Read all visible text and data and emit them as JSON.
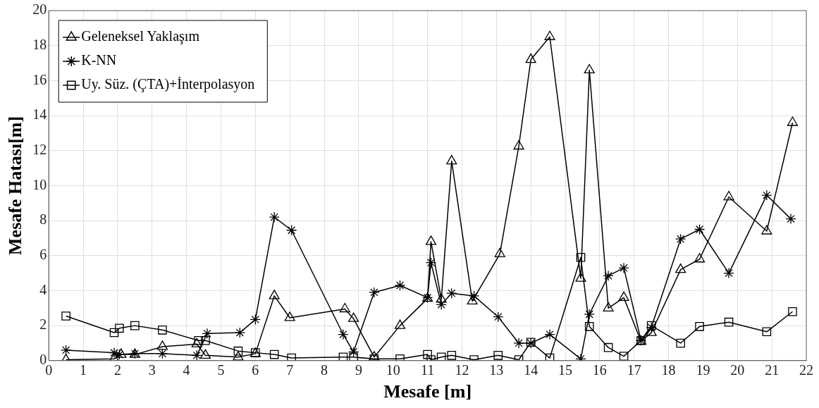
{
  "chart_data": {
    "type": "line",
    "xlabel": "Mesafe [m]",
    "ylabel": "Mesafe Hatası[m]",
    "xlim": [
      0,
      22
    ],
    "xticks": [
      0,
      1,
      2,
      3,
      4,
      5,
      6,
      7,
      8,
      9,
      10,
      11,
      12,
      13,
      14,
      15,
      16,
      17,
      18,
      19,
      20,
      21,
      22
    ],
    "ylim": [
      0,
      20
    ],
    "yticks": [
      0,
      2,
      4,
      6,
      8,
      10,
      12,
      14,
      16,
      18,
      20
    ],
    "grid": true,
    "legend": "top left",
    "line_style": "solid",
    "series": [
      {
        "name": "Geleneksel Yaklaşım",
        "color": "#000000",
        "marker": "triangle",
        "x": [
          0.5,
          1.9,
          2.1,
          2.5,
          3.3,
          4.3,
          4.55,
          5.5,
          6.0,
          6.55,
          7.0,
          8.6,
          8.85,
          9.45,
          10.2,
          11.0,
          11.1,
          11.4,
          11.7,
          12.3,
          13.1,
          13.65,
          14.0,
          14.55,
          15.45,
          15.7,
          16.25,
          16.7,
          17.2,
          17.5,
          18.35,
          18.9,
          19.75,
          20.85,
          21.6
        ],
        "values": [
          0.05,
          0.1,
          0.35,
          0.35,
          0.8,
          0.95,
          0.3,
          0.2,
          0.4,
          3.7,
          2.45,
          2.95,
          2.4,
          0.2,
          2.0,
          3.55,
          6.8,
          3.5,
          11.4,
          3.4,
          6.1,
          12.25,
          17.2,
          18.5,
          4.7,
          16.6,
          3.0,
          3.6,
          1.1,
          1.6,
          5.2,
          5.8,
          9.35,
          7.4,
          13.6
        ]
      },
      {
        "name": "K-NN",
        "color": "#000000",
        "marker": "cross",
        "x": [
          0.5,
          1.9,
          2.05,
          2.5,
          3.3,
          4.3,
          4.6,
          5.55,
          6.0,
          6.55,
          7.05,
          8.55,
          8.85,
          9.45,
          10.2,
          11.0,
          11.1,
          11.4,
          11.7,
          12.35,
          13.05,
          13.65,
          14.0,
          14.55,
          15.45,
          15.7,
          16.25,
          16.7,
          17.2,
          17.5,
          18.35,
          18.9,
          19.75,
          20.85,
          21.55
        ],
        "values": [
          0.6,
          0.45,
          0.35,
          0.4,
          0.4,
          0.3,
          1.55,
          1.6,
          2.35,
          8.2,
          7.45,
          1.5,
          0.5,
          3.9,
          4.3,
          3.6,
          5.6,
          3.2,
          3.85,
          3.7,
          2.5,
          1.0,
          1.0,
          1.5,
          0.1,
          2.65,
          4.85,
          5.3,
          1.15,
          1.9,
          6.95,
          7.5,
          5.0,
          9.45,
          8.1
        ]
      },
      {
        "name": "Uy. Süz. (ÇTA)+İnterpolasyon",
        "color": "#000000",
        "marker": "square",
        "x": [
          0.5,
          1.9,
          2.05,
          2.5,
          3.3,
          4.35,
          4.55,
          5.5,
          6.0,
          6.55,
          7.05,
          8.55,
          8.85,
          9.45,
          10.2,
          11.0,
          11.1,
          11.4,
          11.7,
          12.35,
          13.05,
          13.65,
          14.0,
          14.55,
          15.45,
          15.7,
          16.25,
          16.7,
          17.2,
          17.5,
          18.35,
          18.9,
          19.75,
          20.85,
          21.6
        ],
        "values": [
          2.55,
          1.6,
          1.85,
          2.0,
          1.75,
          1.15,
          1.15,
          0.55,
          0.45,
          0.35,
          0.15,
          0.2,
          0.2,
          0.1,
          0.1,
          0.35,
          0.05,
          0.2,
          0.3,
          0.05,
          0.3,
          0.05,
          1.05,
          0.15,
          5.9,
          1.95,
          0.75,
          0.25,
          1.15,
          2.0,
          1.0,
          1.95,
          2.2,
          1.65,
          2.8
        ]
      }
    ]
  }
}
